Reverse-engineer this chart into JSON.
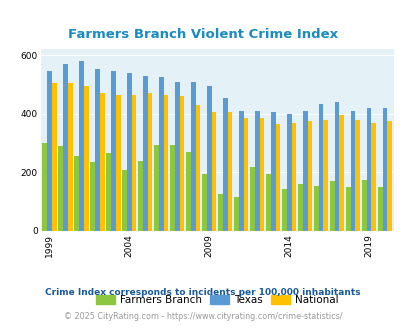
{
  "title": "Farmers Branch Violent Crime Index",
  "years": [
    1999,
    2000,
    2001,
    2002,
    2003,
    2004,
    2005,
    2006,
    2007,
    2008,
    2009,
    2010,
    2011,
    2012,
    2013,
    2014,
    2015,
    2016,
    2017,
    2018,
    2019,
    2020
  ],
  "farmers_branch": [
    300,
    290,
    255,
    235,
    265,
    210,
    240,
    295,
    295,
    270,
    195,
    125,
    115,
    220,
    195,
    145,
    160,
    155,
    170,
    150,
    175,
    150
  ],
  "texas": [
    545,
    570,
    580,
    555,
    545,
    540,
    530,
    525,
    510,
    510,
    495,
    455,
    410,
    410,
    405,
    400,
    410,
    435,
    440,
    410,
    420,
    420
  ],
  "national": [
    505,
    505,
    495,
    470,
    465,
    465,
    470,
    465,
    460,
    430,
    405,
    405,
    385,
    385,
    365,
    370,
    375,
    380,
    395,
    380,
    370,
    375
  ],
  "bar_colors": [
    "#8dc63f",
    "#5b9bd5",
    "#ffc000"
  ],
  "plot_bg": "#e4f2f7",
  "xlabel_ticks": [
    1999,
    2004,
    2009,
    2014,
    2019
  ],
  "ylim": [
    0,
    620
  ],
  "yticks": [
    0,
    200,
    400,
    600
  ],
  "legend_labels": [
    "Farmers Branch",
    "Texas",
    "National"
  ],
  "footnote1": "Crime Index corresponds to incidents per 100,000 inhabitants",
  "footnote2": "© 2025 CityRating.com - https://www.cityrating.com/crime-statistics/",
  "title_color": "#1a8abf",
  "footnote1_color": "#1a5a99",
  "footnote2_color": "#999999"
}
